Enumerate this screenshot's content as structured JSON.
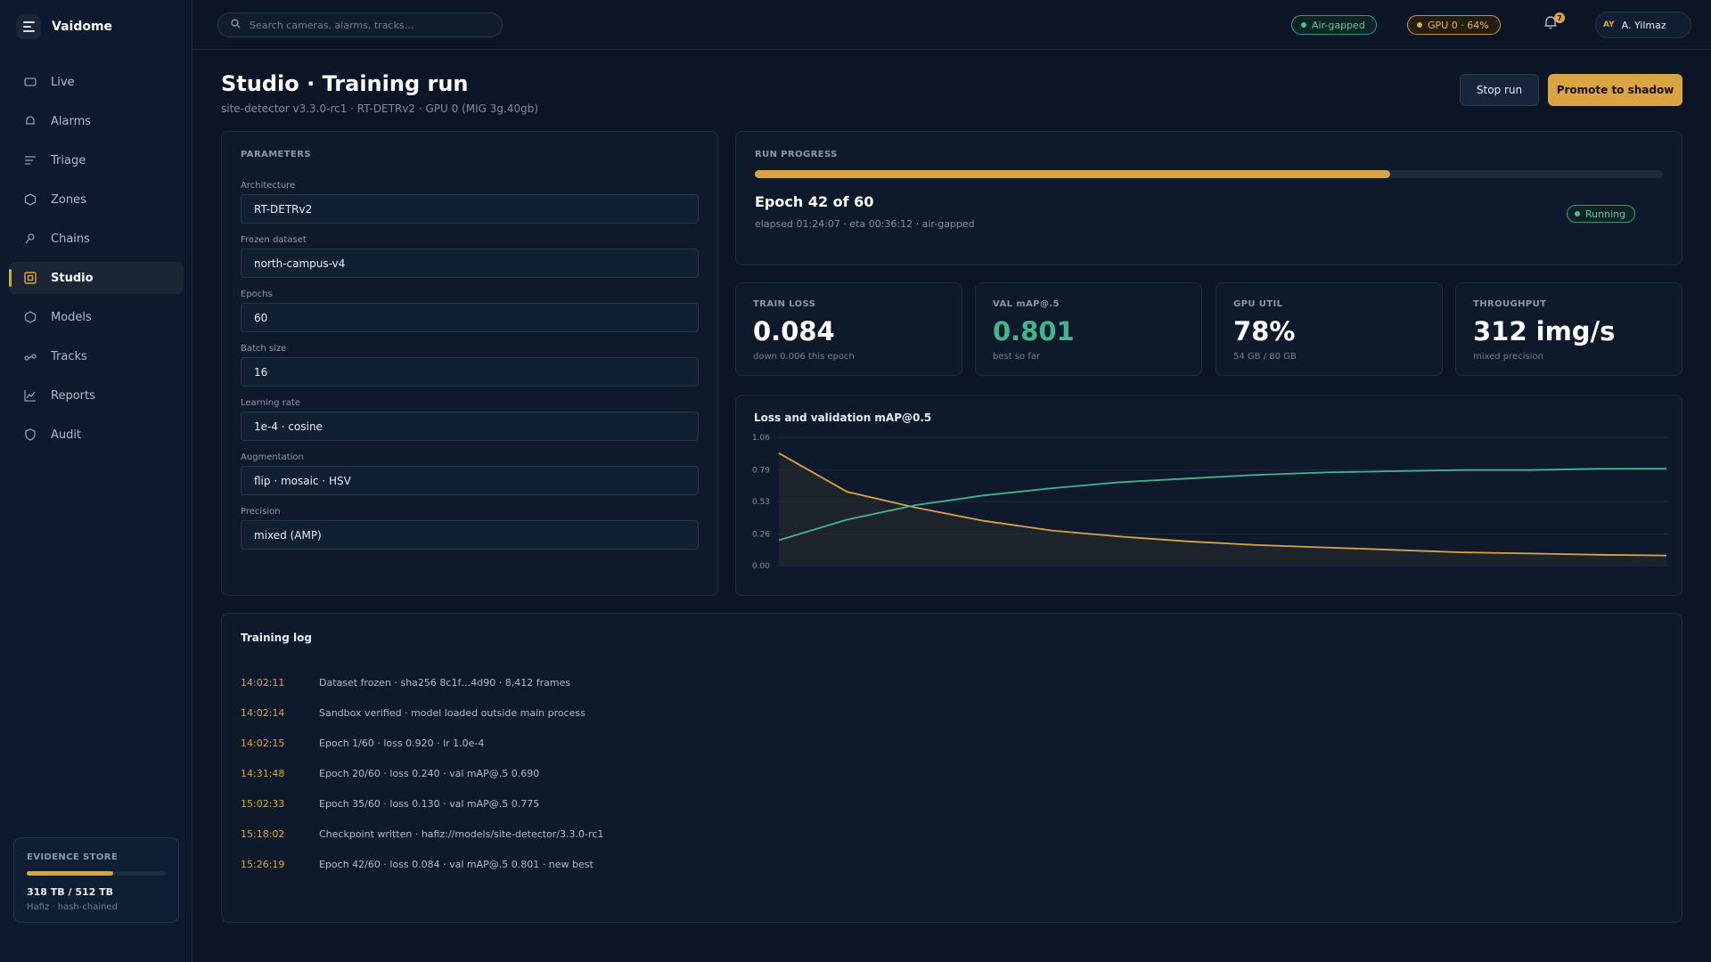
{
  "app": {
    "name": "Vaidome"
  },
  "sidebar": {
    "items": [
      {
        "label": "Live",
        "icon": "camera-icon"
      },
      {
        "label": "Alarms",
        "icon": "bell-icon"
      },
      {
        "label": "Triage",
        "icon": "list-icon"
      },
      {
        "label": "Zones",
        "icon": "hexagon-icon"
      },
      {
        "label": "Chains",
        "icon": "key-icon"
      },
      {
        "label": "Studio",
        "icon": "studio-icon",
        "active": true
      },
      {
        "label": "Models",
        "icon": "hexagon-icon"
      },
      {
        "label": "Tracks",
        "icon": "route-icon"
      },
      {
        "label": "Reports",
        "icon": "chart-icon"
      },
      {
        "label": "Audit",
        "icon": "shield-icon"
      }
    ],
    "evidence": {
      "label": "EVIDENCE STORE",
      "value": "318 TB / 512 TB",
      "used_fraction": 0.62,
      "sub": "Hafiz · hash-chained"
    }
  },
  "topbar": {
    "search_placeholder": "Search cameras, alarms, tracks…",
    "air_gapped": "Air-gapped",
    "gpu": "GPU 0 · 64%",
    "notifications": "7",
    "user_initials": "AY",
    "user_name": "A. Yilmaz"
  },
  "page": {
    "title": "Studio · Training run",
    "subtitle": "site-detector v3.3.0-rc1 · RT-DETRv2 · GPU 0 (MIG 3g.40gb)",
    "stop_label": "Stop run",
    "promote_label": "Promote to shadow"
  },
  "params": {
    "label": "PARAMETERS",
    "fields": [
      {
        "label": "Architecture",
        "value": "RT-DETRv2"
      },
      {
        "label": "Frozen dataset",
        "value": "north-campus-v4"
      },
      {
        "label": "Epochs",
        "value": "60"
      },
      {
        "label": "Batch size",
        "value": "16"
      },
      {
        "label": "Learning rate",
        "value": "1e-4 · cosine"
      },
      {
        "label": "Augmentation",
        "value": "flip · mosaic · HSV"
      },
      {
        "label": "Precision",
        "value": "mixed (AMP)"
      }
    ]
  },
  "progress": {
    "label": "RUN PROGRESS",
    "fraction": 0.7,
    "epoch_text": "Epoch 42 of 60",
    "elapsed_text": "elapsed 01:24:07 · eta 00:36:12 · air-gapped",
    "status": "Running"
  },
  "stats": [
    {
      "label": "TRAIN LOSS",
      "value": "0.084",
      "sub": "down 0.006 this epoch"
    },
    {
      "label": "VAL mAP@.5",
      "value": "0.801",
      "sub": "best so far",
      "accent": "#3fb68b"
    },
    {
      "label": "GPU UTIL",
      "value": "78%",
      "sub": "54 GB / 80 GB"
    },
    {
      "label": "THROUGHPUT",
      "value": "312 img/s",
      "sub": "mixed precision"
    }
  ],
  "chart_data": {
    "type": "line",
    "title": "Loss and validation mAP@0.5",
    "y_ticks": [
      "1.06",
      "0.79",
      "0.53",
      "0.26",
      "0.00"
    ],
    "ylim": [
      0,
      1.06
    ],
    "grid": true,
    "series": [
      {
        "color": "#d9a441",
        "values": [
          0.93,
          0.61,
          0.48,
          0.37,
          0.29,
          0.24,
          0.2,
          0.17,
          0.15,
          0.13,
          0.11,
          0.1,
          0.09,
          0.084
        ]
      },
      {
        "color": "#3fb68b",
        "values": [
          0.21,
          0.38,
          0.5,
          0.58,
          0.64,
          0.69,
          0.72,
          0.75,
          0.77,
          0.78,
          0.79,
          0.79,
          0.8,
          0.801
        ]
      }
    ]
  },
  "log": {
    "title": "Training log",
    "rows": [
      {
        "time": "14:02:11",
        "msg": "Dataset frozen · sha256 8c1f…4d90 · 8,412 frames"
      },
      {
        "time": "14:02:14",
        "msg": "Sandbox verified · model loaded outside main process"
      },
      {
        "time": "14:02:15",
        "msg": "Epoch 1/60 · loss 0.920 · lr 1.0e-4"
      },
      {
        "time": "14:31:48",
        "msg": "Epoch 20/60 · loss 0.240 · val mAP@.5 0.690"
      },
      {
        "time": "15:02:33",
        "msg": "Epoch 35/60 · loss 0.130 · val mAP@.5 0.775"
      },
      {
        "time": "15:18:02",
        "msg": "Checkpoint written · hafiz://models/site-detector/3.3.0-rc1"
      },
      {
        "time": "15:26:19",
        "msg": "Epoch 42/60 · loss 0.084 · val mAP@.5 0.801 · new best"
      }
    ]
  }
}
